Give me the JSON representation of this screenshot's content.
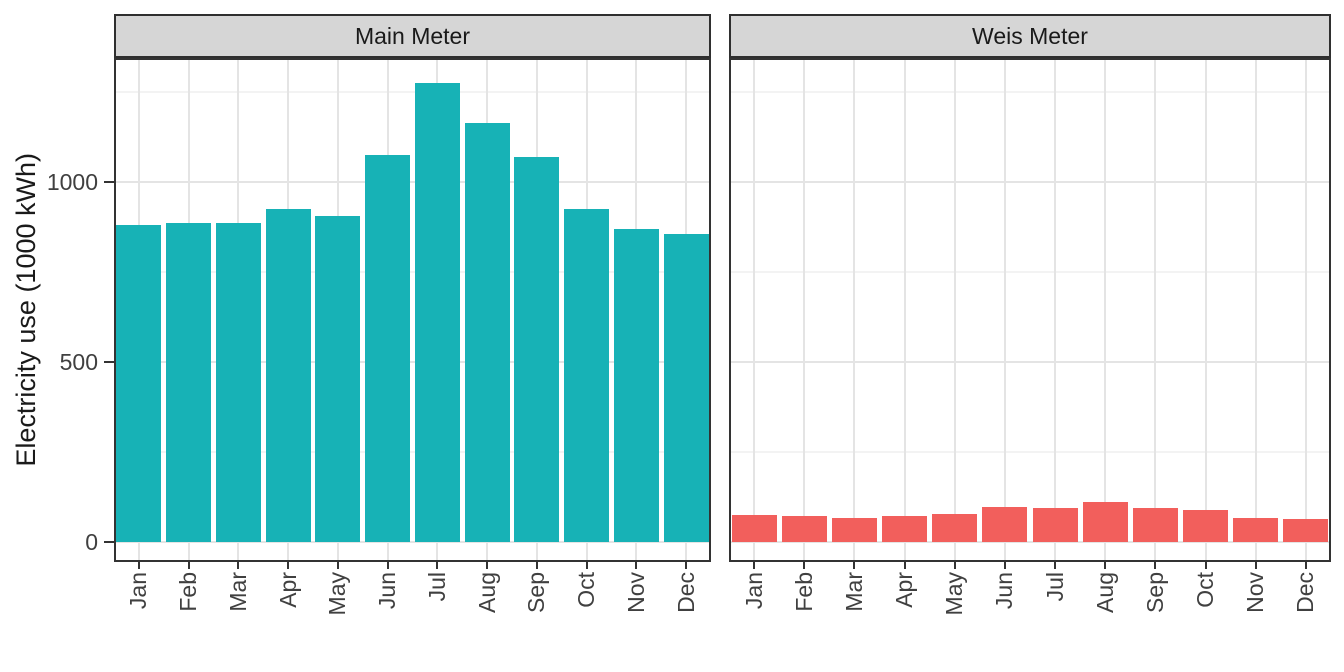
{
  "figure": {
    "background": "#ffffff"
  },
  "chart_data": {
    "type": "bar",
    "title": "",
    "xlabel": "",
    "ylabel": "Electricity use (1000 kWh)",
    "categories": [
      "Jan",
      "Feb",
      "Mar",
      "Apr",
      "May",
      "Jun",
      "Jul",
      "Aug",
      "Sep",
      "Oct",
      "Nov",
      "Dec"
    ],
    "facets": [
      {
        "label": "Main Meter",
        "bar_color": "#17b2b6",
        "values": [
          880,
          885,
          885,
          925,
          905,
          1075,
          1275,
          1165,
          1070,
          925,
          870,
          855
        ]
      },
      {
        "label": "Weis Meter",
        "bar_color": "#f25f5c",
        "values": [
          75,
          72,
          68,
          73,
          77,
          98,
          95,
          110,
          95,
          90,
          68,
          65
        ]
      }
    ],
    "ylim": [
      0,
      1350
    ],
    "yticks": [
      0,
      500,
      1000
    ],
    "yticks_minor": [
      250,
      750,
      1250
    ],
    "grid": true,
    "legend_position": "none",
    "colors": {
      "strip_fill": "#d6d6d6",
      "strip_border": "#2f2f2f",
      "panel_border": "#333333",
      "grid_major": "#e4e4e4",
      "grid_minor": "#f3f3f3",
      "tick_mark": "#333333",
      "axis_text": "#404040",
      "title_text": "#1a1a1a"
    }
  }
}
